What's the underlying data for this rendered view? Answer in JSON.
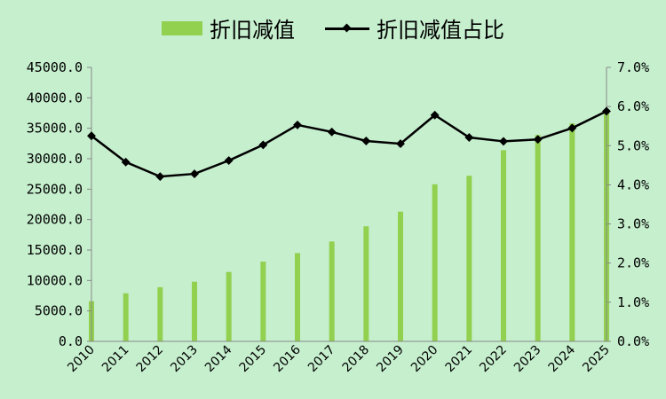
{
  "chart_data": {
    "type": "bar+line",
    "categories": [
      "2010",
      "2011",
      "2012",
      "2013",
      "2014",
      "2015",
      "2016",
      "2017",
      "2018",
      "2019",
      "2020",
      "2021",
      "2022",
      "2023",
      "2024",
      "2025"
    ],
    "series": [
      {
        "name": "折旧减值",
        "type": "bar",
        "axis": "left",
        "color": "#92d050",
        "values": [
          6600,
          7900,
          8900,
          9800,
          11400,
          13100,
          14500,
          16400,
          18900,
          21300,
          25800,
          27200,
          31400,
          33900,
          35800,
          37800
        ]
      },
      {
        "name": "折旧减值占比",
        "type": "line",
        "axis": "right",
        "color": "#000000",
        "values": [
          5.25,
          4.58,
          4.21,
          4.28,
          4.62,
          5.02,
          5.53,
          5.35,
          5.12,
          5.05,
          5.78,
          5.21,
          5.11,
          5.16,
          5.45,
          5.88
        ]
      }
    ],
    "y_left": {
      "min": 0,
      "max": 45000,
      "ticks": [
        "0.0",
        "5000.0",
        "10000.0",
        "15000.0",
        "20000.0",
        "25000.0",
        "30000.0",
        "35000.0",
        "40000.0",
        "45000.0"
      ]
    },
    "y_right": {
      "min": 0,
      "max": 7,
      "ticks": [
        "0.0%",
        "1.0%",
        "2.0%",
        "3.0%",
        "4.0%",
        "5.0%",
        "6.0%",
        "7.0%"
      ]
    },
    "grid": false,
    "legend": "top-center"
  }
}
